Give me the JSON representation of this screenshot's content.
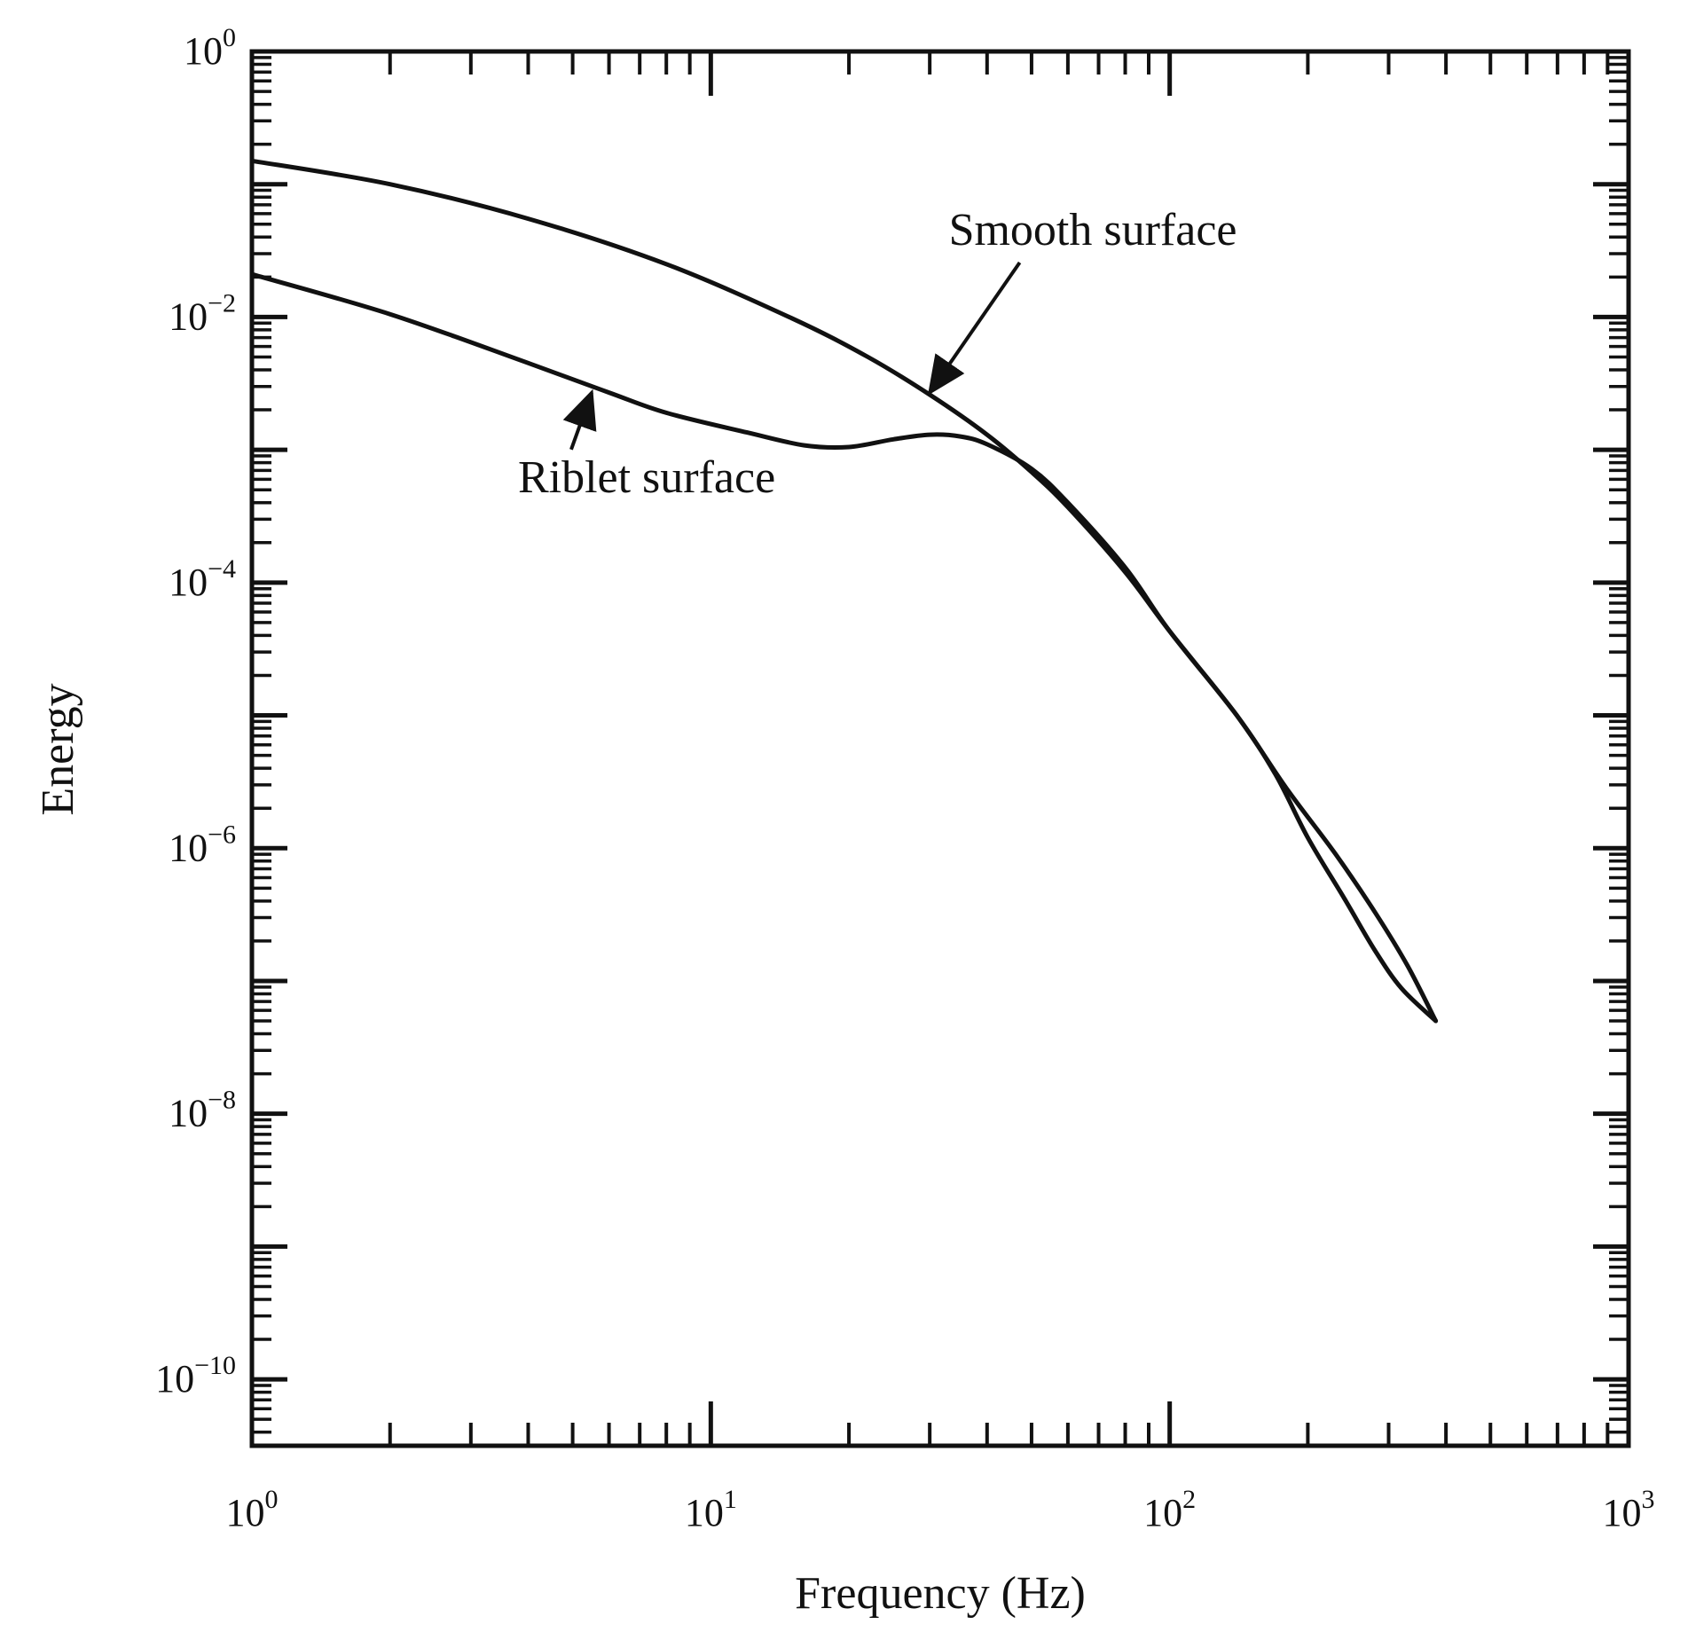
{
  "chart_data": {
    "type": "line",
    "title": "",
    "xlabel": "Frequency (Hz)",
    "ylabel": "Energy",
    "x_scale": "log",
    "y_scale": "log",
    "xlim": [
      1,
      1000
    ],
    "ylim": [
      3.16e-11,
      1
    ],
    "grid": false,
    "x_ticks": [
      {
        "value": 1,
        "base": "10",
        "exp": "0"
      },
      {
        "value": 10,
        "base": "10",
        "exp": "1"
      },
      {
        "value": 100,
        "base": "10",
        "exp": "2"
      },
      {
        "value": 1000,
        "base": "10",
        "exp": "3"
      }
    ],
    "y_ticks": [
      {
        "value": 1,
        "base": "10",
        "exp": "0"
      },
      {
        "value": 0.01,
        "base": "10",
        "exp": "−2"
      },
      {
        "value": 0.0001,
        "base": "10",
        "exp": "−4"
      },
      {
        "value": 1e-06,
        "base": "10",
        "exp": "−6"
      },
      {
        "value": 1e-08,
        "base": "10",
        "exp": "−8"
      },
      {
        "value": 1e-10,
        "base": "10",
        "exp": "−10"
      }
    ],
    "series": [
      {
        "id": "smooth",
        "color": "#111111",
        "x": [
          1,
          2,
          4,
          8,
          15,
          22,
          30,
          40,
          50,
          60,
          80,
          100,
          140,
          180,
          230,
          280,
          330,
          380
        ],
        "y": [
          0.15,
          0.1,
          0.055,
          0.025,
          0.0098,
          0.005,
          0.0026,
          0.0013,
          0.00068,
          0.00037,
          0.00012,
          4.3e-05,
          1e-05,
          2.8e-06,
          9e-07,
          3.3e-07,
          1.3e-07,
          5e-08
        ],
        "label": "Smooth surface",
        "label_x": 33,
        "label_y": 0.035,
        "arrow_to": [
          30,
          0.0027
        ]
      },
      {
        "id": "riblet",
        "color": "#111111",
        "x": [
          1,
          2,
          4,
          6,
          8,
          12,
          16,
          20,
          25,
          30,
          35,
          40,
          50,
          60,
          80,
          100,
          140,
          170,
          200,
          240,
          280,
          320,
          380
        ],
        "y": [
          0.021,
          0.0105,
          0.0045,
          0.0027,
          0.0019,
          0.00135,
          0.00108,
          0.00105,
          0.0012,
          0.0013,
          0.00126,
          0.0011,
          0.00072,
          0.0004,
          0.00013,
          4.3e-05,
          1e-05,
          3.6e-06,
          1.2e-06,
          4.2e-07,
          1.7e-07,
          8.8e-08,
          5e-08
        ],
        "label": "Riblet surface",
        "label_x": 3.8,
        "label_y": 0.00048,
        "arrow_to": [
          5.5,
          0.0027
        ]
      }
    ]
  }
}
